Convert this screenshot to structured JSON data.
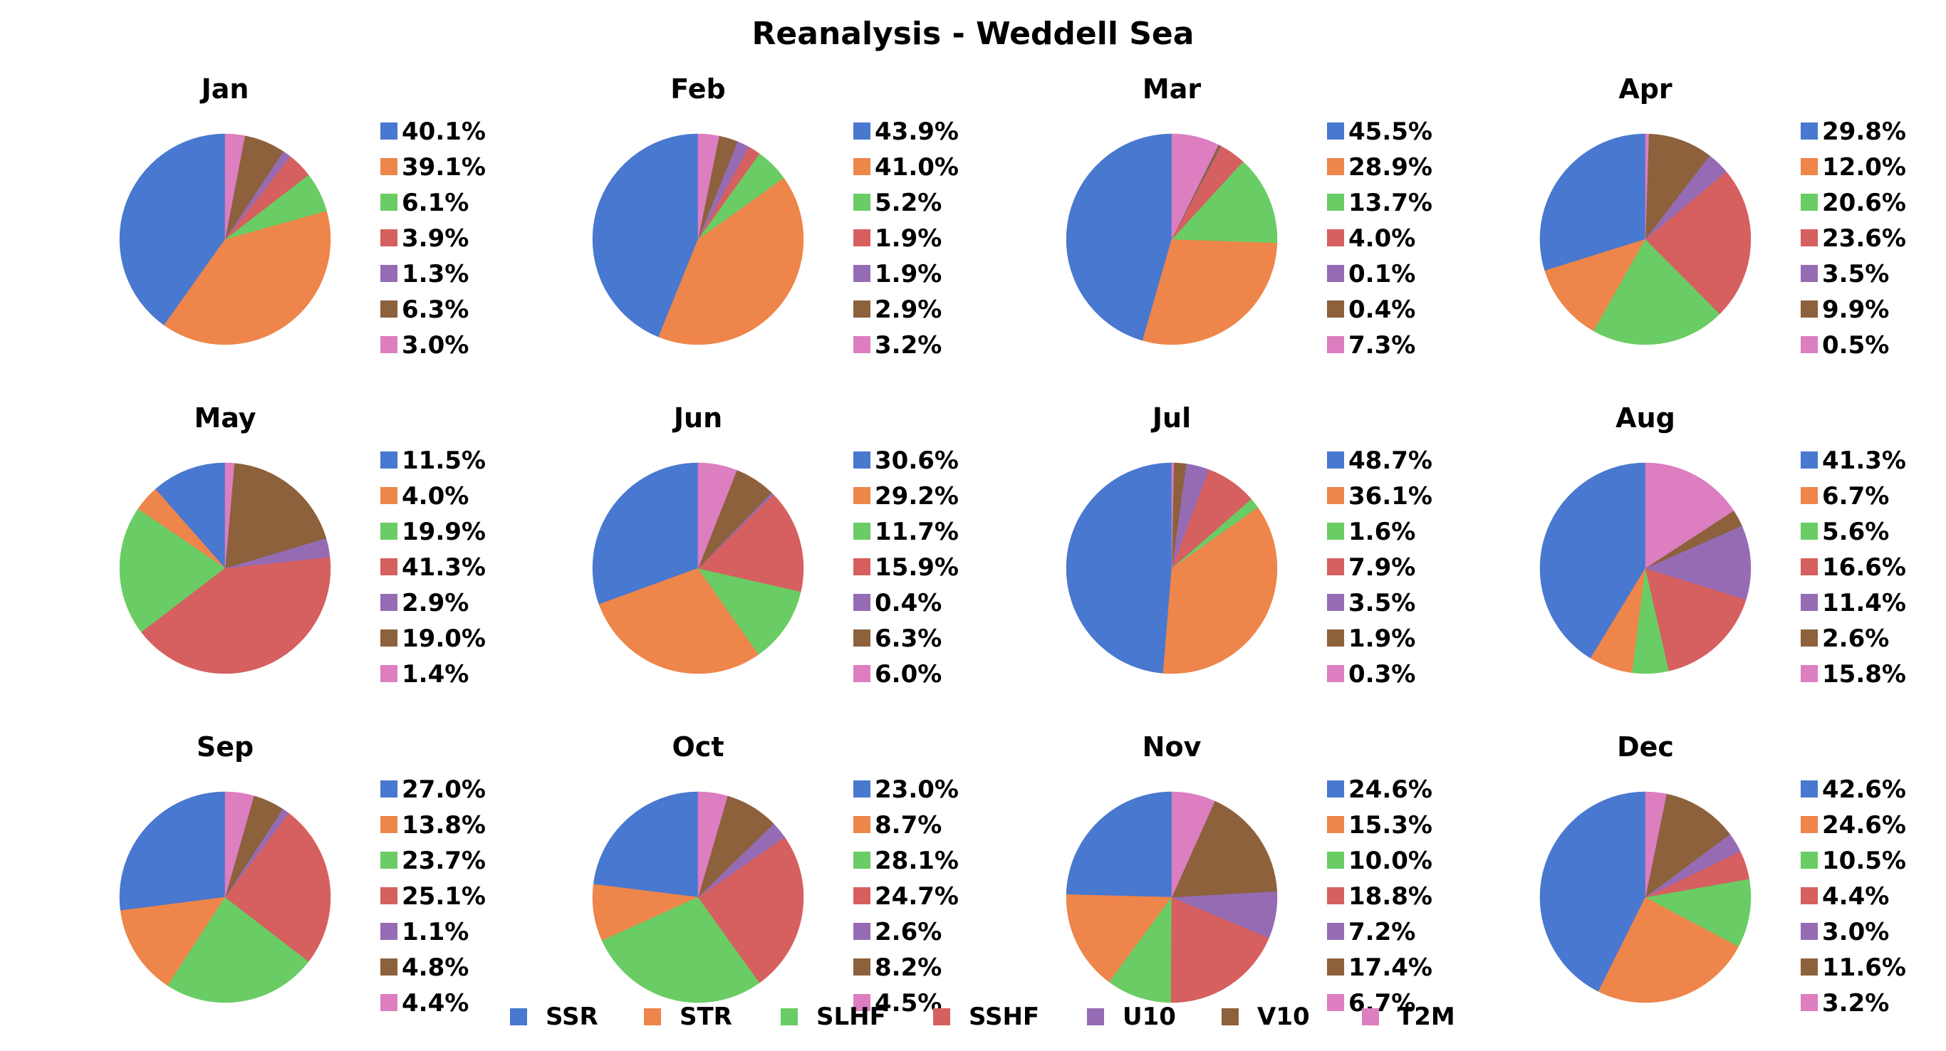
{
  "figure_title": "Reanalysis - Weddell Sea",
  "colors": {
    "SSR": "#4878cf",
    "STR": "#ee854a",
    "SLHF": "#6acc64",
    "SSHF": "#d65f5f",
    "U10": "#956cb4",
    "V10": "#8c613c",
    "T2M": "#dc7ec0"
  },
  "legend": [
    "SSR",
    "STR",
    "SLHF",
    "SSHF",
    "U10",
    "V10",
    "T2M"
  ],
  "chart_data": [
    {
      "type": "pie",
      "title": "Jan",
      "categories": [
        "SSR",
        "STR",
        "SLHF",
        "SSHF",
        "U10",
        "V10",
        "T2M"
      ],
      "values": [
        40.1,
        39.1,
        6.1,
        3.9,
        1.3,
        6.3,
        3.0
      ],
      "labels": [
        "40.1%",
        "39.1%",
        "6.1%",
        "3.9%",
        "1.3%",
        "6.3%",
        "3.0%"
      ]
    },
    {
      "type": "pie",
      "title": "Feb",
      "categories": [
        "SSR",
        "STR",
        "SLHF",
        "SSHF",
        "U10",
        "V10",
        "T2M"
      ],
      "values": [
        43.9,
        41.0,
        5.2,
        1.9,
        1.9,
        2.9,
        3.2
      ],
      "labels": [
        "43.9%",
        "41.0%",
        "5.2%",
        "1.9%",
        "1.9%",
        "2.9%",
        "3.2%"
      ]
    },
    {
      "type": "pie",
      "title": "Mar",
      "categories": [
        "SSR",
        "STR",
        "SLHF",
        "SSHF",
        "U10",
        "V10",
        "T2M"
      ],
      "values": [
        45.5,
        28.9,
        13.7,
        4.0,
        0.1,
        0.4,
        7.3
      ],
      "labels": [
        "45.5%",
        "28.9%",
        "13.7%",
        "4.0%",
        "0.1%",
        "0.4%",
        "7.3%"
      ]
    },
    {
      "type": "pie",
      "title": "Apr",
      "categories": [
        "SSR",
        "STR",
        "SLHF",
        "SSHF",
        "U10",
        "V10",
        "T2M"
      ],
      "values": [
        29.8,
        12.0,
        20.6,
        23.6,
        3.5,
        9.9,
        0.5
      ],
      "labels": [
        "29.8%",
        "12.0%",
        "20.6%",
        "23.6%",
        "3.5%",
        "9.9%",
        "0.5%"
      ]
    },
    {
      "type": "pie",
      "title": "May",
      "categories": [
        "SSR",
        "STR",
        "SLHF",
        "SSHF",
        "U10",
        "V10",
        "T2M"
      ],
      "values": [
        11.5,
        4.0,
        19.9,
        41.3,
        2.9,
        19.0,
        1.4
      ],
      "labels": [
        "11.5%",
        "4.0%",
        "19.9%",
        "41.3%",
        "2.9%",
        "19.0%",
        "1.4%"
      ]
    },
    {
      "type": "pie",
      "title": "Jun",
      "categories": [
        "SSR",
        "STR",
        "SLHF",
        "SSHF",
        "U10",
        "V10",
        "T2M"
      ],
      "values": [
        30.6,
        29.2,
        11.7,
        15.9,
        0.4,
        6.3,
        6.0
      ],
      "labels": [
        "30.6%",
        "29.2%",
        "11.7%",
        "15.9%",
        "0.4%",
        "6.3%",
        "6.0%"
      ]
    },
    {
      "type": "pie",
      "title": "Jul",
      "categories": [
        "SSR",
        "STR",
        "SLHF",
        "SSHF",
        "U10",
        "V10",
        "T2M"
      ],
      "values": [
        48.7,
        36.1,
        1.6,
        7.9,
        3.5,
        1.9,
        0.3
      ],
      "labels": [
        "48.7%",
        "36.1%",
        "1.6%",
        "7.9%",
        "3.5%",
        "1.9%",
        "0.3%"
      ]
    },
    {
      "type": "pie",
      "title": "Aug",
      "categories": [
        "SSR",
        "STR",
        "SLHF",
        "SSHF",
        "U10",
        "V10",
        "T2M"
      ],
      "values": [
        41.3,
        6.7,
        5.6,
        16.6,
        11.4,
        2.6,
        15.8
      ],
      "labels": [
        "41.3%",
        "6.7%",
        "5.6%",
        "16.6%",
        "11.4%",
        "2.6%",
        "15.8%"
      ]
    },
    {
      "type": "pie",
      "title": "Sep",
      "categories": [
        "SSR",
        "STR",
        "SLHF",
        "SSHF",
        "U10",
        "V10",
        "T2M"
      ],
      "values": [
        27.0,
        13.8,
        23.7,
        25.1,
        1.1,
        4.8,
        4.4
      ],
      "labels": [
        "27.0%",
        "13.8%",
        "23.7%",
        "25.1%",
        "1.1%",
        "4.8%",
        "4.4%"
      ]
    },
    {
      "type": "pie",
      "title": "Oct",
      "categories": [
        "SSR",
        "STR",
        "SLHF",
        "SSHF",
        "U10",
        "V10",
        "T2M"
      ],
      "values": [
        23.0,
        8.7,
        28.1,
        24.7,
        2.6,
        8.2,
        4.5
      ],
      "labels": [
        "23.0%",
        "8.7%",
        "28.1%",
        "24.7%",
        "2.6%",
        "8.2%",
        "4.5%"
      ]
    },
    {
      "type": "pie",
      "title": "Nov",
      "categories": [
        "SSR",
        "STR",
        "SLHF",
        "SSHF",
        "U10",
        "V10",
        "T2M"
      ],
      "values": [
        24.6,
        15.3,
        10.0,
        18.8,
        7.2,
        17.4,
        6.7
      ],
      "labels": [
        "24.6%",
        "15.3%",
        "10.0%",
        "18.8%",
        "7.2%",
        "17.4%",
        "6.7%"
      ]
    },
    {
      "type": "pie",
      "title": "Dec",
      "categories": [
        "SSR",
        "STR",
        "SLHF",
        "SSHF",
        "U10",
        "V10",
        "T2M"
      ],
      "values": [
        42.6,
        24.6,
        10.5,
        4.4,
        3.0,
        11.6,
        3.2
      ],
      "labels": [
        "42.6%",
        "24.6%",
        "10.5%",
        "4.4%",
        "3.0%",
        "11.6%",
        "3.2%"
      ]
    }
  ]
}
